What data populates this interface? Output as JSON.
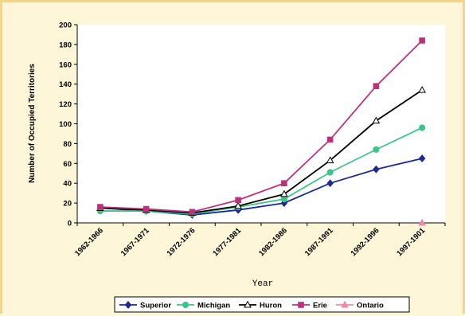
{
  "chart_data": {
    "type": "line",
    "title": "",
    "xlabel": "Year",
    "ylabel": "Number of Occupied Territories",
    "ylim": [
      0,
      200
    ],
    "yticks": [
      "0",
      "20",
      "40",
      "60",
      "80",
      "100",
      "120",
      "140",
      "160",
      "180",
      "200"
    ],
    "categories": [
      "1962-1966",
      "1967-1971",
      "1972-1976",
      "1977-1981",
      "1982-1986",
      "1987-1991",
      "1992-1996",
      "1997-1901"
    ],
    "grid": false,
    "legend": "bottom",
    "series": [
      {
        "name": "Superior",
        "color": "#1f2a8c",
        "marker": "diamond",
        "values": [
          15,
          12,
          8,
          13,
          20,
          40,
          54,
          65
        ]
      },
      {
        "name": "Michigan",
        "color": "#3fc38a",
        "marker": "circle",
        "values": [
          12,
          12,
          9,
          16,
          24,
          51,
          74,
          96
        ]
      },
      {
        "name": "Huron",
        "color": "#000000",
        "marker": "triangle-open",
        "values": [
          15,
          13,
          10,
          17,
          29,
          63,
          103,
          134
        ]
      },
      {
        "name": "Erie",
        "color": "#b8347a",
        "marker": "square",
        "values": [
          16,
          14,
          11,
          23,
          40,
          84,
          138,
          184
        ]
      },
      {
        "name": "Ontario",
        "color": "#f08aa8",
        "marker": "triangle",
        "values": [
          null,
          null,
          null,
          null,
          null,
          null,
          null,
          0
        ]
      }
    ]
  }
}
